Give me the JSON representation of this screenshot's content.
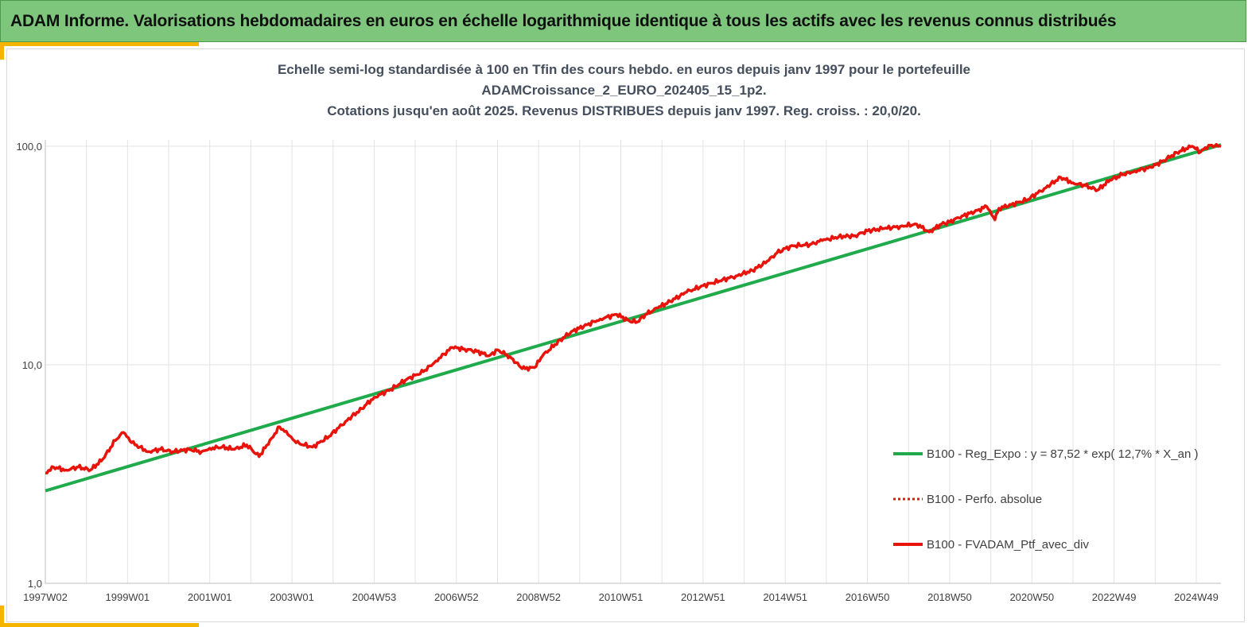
{
  "header": {
    "title": "ADAM Informe. Valorisations hebdomadaires en euros en échelle logarithmique identique à tous les actifs avec les revenus connus distribués",
    "bg_color": "#7dc67c",
    "accent_color": "#f4b400"
  },
  "chart_data": {
    "type": "line",
    "title_lines": [
      "Echelle semi-log standardisée à 100 en Tfin des cours hebdo.  en euros depuis janv 1997 pour le portefeuille",
      "ADAMCroissance_2_EURO_202405_15_1p2.",
      "Cotations jusqu'en août 2025. Revenus DISTRIBUES depuis janv 1997. Reg. croiss. : 20,0/20."
    ],
    "y_scale": "log",
    "ylim": [
      1,
      100
    ],
    "xlim": [
      1997.0,
      2025.6
    ],
    "y_ticks": [
      1,
      10,
      100
    ],
    "y_tick_labels": [
      "1,0",
      "10,0",
      "100,0"
    ],
    "x_ticks": [
      1997.0,
      1999.0,
      2001.0,
      2003.0,
      2005.0,
      2007.0,
      2009.0,
      2011.0,
      2013.0,
      2015.0,
      2017.0,
      2019.0,
      2021.0,
      2023.0,
      2025.0
    ],
    "x_tick_labels": [
      "1997W02",
      "1999W01",
      "2001W01",
      "2003W01",
      "2004W53",
      "2006W52",
      "2008W52",
      "2010W51",
      "2012W51",
      "2014W51",
      "2016W50",
      "2018W50",
      "2020W50",
      "2022W49",
      "2024W49"
    ],
    "grid": "vertical",
    "legend_position": "right",
    "legend": [
      {
        "label": "B100 - Reg_Expo : y = 87,52 * exp( 12,7% *  X_an )",
        "color": "#1faa4b",
        "style": "solid"
      },
      {
        "label": "B100 - Perfo. absolue",
        "color": "#e8140c",
        "style": "dotted"
      },
      {
        "label": "B100 - FVADAM_Ptf_avec_div",
        "color": "#e8140c",
        "style": "solid"
      }
    ],
    "series": [
      {
        "name": "B100 - Reg_Expo : y = 87,52 * exp( 12,7% *  X_an )",
        "color": "#1faa4b",
        "x": [
          1997.0,
          2025.6
        ],
        "y": [
          2.65,
          101.5
        ]
      },
      {
        "name": "B100 - FVADAM_Ptf_avec_div",
        "color": "#e8140c",
        "x": [
          1997.0,
          1997.2,
          1997.5,
          1997.8,
          1998.1,
          1998.4,
          1998.7,
          1998.9,
          1999.1,
          1999.3,
          1999.5,
          1999.8,
          2000.1,
          2000.5,
          2000.8,
          2001.0,
          2001.3,
          2001.6,
          2001.9,
          2002.2,
          2002.5,
          2002.7,
          2002.9,
          2003.1,
          2003.5,
          2003.9,
          2004.3,
          2004.7,
          2005.0,
          2005.4,
          2005.8,
          2006.2,
          2006.5,
          2006.7,
          2006.9,
          2007.2,
          2007.5,
          2007.8,
          2008.0,
          2008.3,
          2008.6,
          2008.9,
          2009.1,
          2009.4,
          2009.8,
          2010.1,
          2010.5,
          2010.9,
          2011.2,
          2011.4,
          2011.6,
          2011.9,
          2012.2,
          2012.6,
          2013.0,
          2013.4,
          2013.8,
          2014.2,
          2014.6,
          2014.8,
          2015.0,
          2015.2,
          2015.6,
          2015.9,
          2016.3,
          2016.7,
          2017.0,
          2017.4,
          2017.8,
          2018.2,
          2018.5,
          2018.8,
          2019.0,
          2019.3,
          2019.6,
          2019.9,
          2020.1,
          2020.2,
          2020.5,
          2020.9,
          2021.3,
          2021.7,
          2022.0,
          2022.3,
          2022.6,
          2022.9,
          2023.2,
          2023.5,
          2023.9,
          2024.2,
          2024.6,
          2024.9,
          2025.1,
          2025.3,
          2025.6
        ],
        "y": [
          3.2,
          3.4,
          3.3,
          3.4,
          3.3,
          3.7,
          4.5,
          4.9,
          4.4,
          4.2,
          4.0,
          4.1,
          4.0,
          4.1,
          4.0,
          4.15,
          4.2,
          4.1,
          4.3,
          3.8,
          4.6,
          5.2,
          4.8,
          4.4,
          4.2,
          4.7,
          5.5,
          6.3,
          7.1,
          7.7,
          8.6,
          9.3,
          10.4,
          11.2,
          12.0,
          11.8,
          11.5,
          11.0,
          11.7,
          10.9,
          9.6,
          9.7,
          11.0,
          12.4,
          14.2,
          15.0,
          16.2,
          17.0,
          15.9,
          15.7,
          17.0,
          18.2,
          19.5,
          21.5,
          23.0,
          24.2,
          25.5,
          27.0,
          30.0,
          32.5,
          34.0,
          35.0,
          35.5,
          37.0,
          38.5,
          39.0,
          41.0,
          42.0,
          43.0,
          44.0,
          40.5,
          44.0,
          45.0,
          48.0,
          50.0,
          53.0,
          46.0,
          52.0,
          54.0,
          57.0,
          64.0,
          72.0,
          68.0,
          66.0,
          63.0,
          70.0,
          74.0,
          77.0,
          80.0,
          86.0,
          95.0,
          100.0,
          94.0,
          101.0,
          100.0
        ]
      }
    ]
  }
}
